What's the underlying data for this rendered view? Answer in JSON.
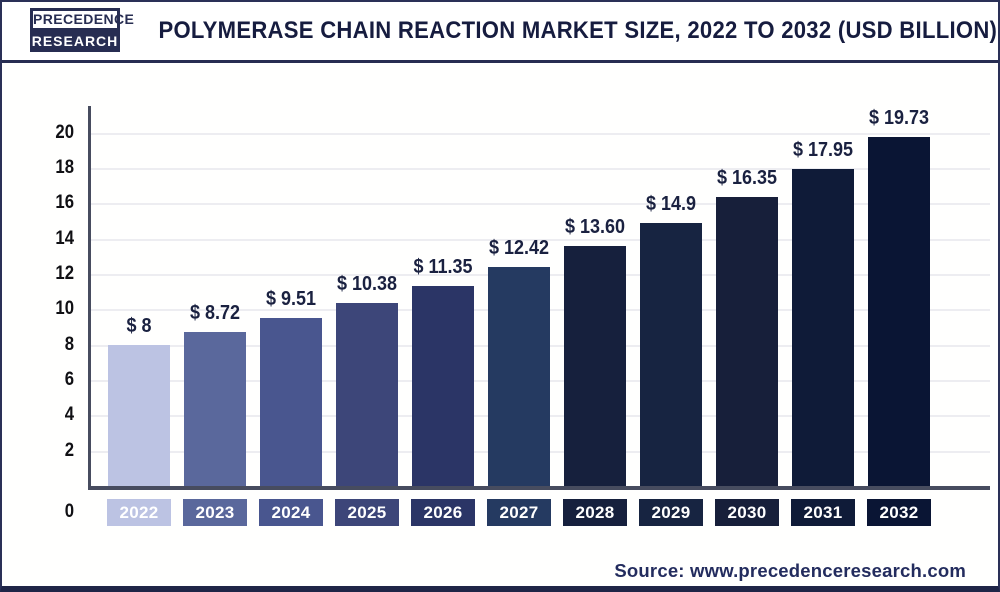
{
  "header": {
    "logo": {
      "line1": "PRECEDENCE",
      "line2": "RESEARCH"
    },
    "title": "POLYMERASE CHAIN REACTION MARKET SIZE, 2022 TO 2032 (USD BILLION)"
  },
  "chart_data": {
    "type": "bar",
    "title": "Polymerase Chain Reaction Market Size, 2022 to 2032 (USD Billion)",
    "categories": [
      "2022",
      "2023",
      "2024",
      "2025",
      "2026",
      "2027",
      "2028",
      "2029",
      "2030",
      "2031",
      "2032"
    ],
    "values": [
      8,
      8.72,
      9.51,
      10.38,
      11.35,
      12.42,
      13.6,
      14.9,
      16.35,
      17.95,
      19.73
    ],
    "value_labels": [
      "$ 8",
      "$ 8.72",
      "$ 9.51",
      "$ 10.38",
      "$ 11.35",
      "$ 12.42",
      "$ 13.60",
      "$ 14.9",
      "$ 16.35",
      "$ 17.95",
      "$ 19.73"
    ],
    "bar_colors": [
      "#bcc3e3",
      "#5a689c",
      "#49568f",
      "#3d4679",
      "#2b3566",
      "#253a61",
      "#16203d",
      "#172441",
      "#171f3a",
      "#0f1b38",
      "#0a1534"
    ],
    "xlabel": "",
    "ylabel": "",
    "ylim": [
      0,
      20
    ],
    "yticks": [
      0,
      2,
      4,
      6,
      8,
      10,
      12,
      14,
      16,
      18,
      20
    ],
    "grid": true,
    "legend_position": "none"
  },
  "source": {
    "label": "Source: www.precedenceresearch.com"
  },
  "colors": {
    "accent_navy": "#272d52",
    "axis": "#474c5f",
    "gridline": "#ededf1",
    "title_text": "#161c3f",
    "value_label_text": "#1a2140"
  }
}
